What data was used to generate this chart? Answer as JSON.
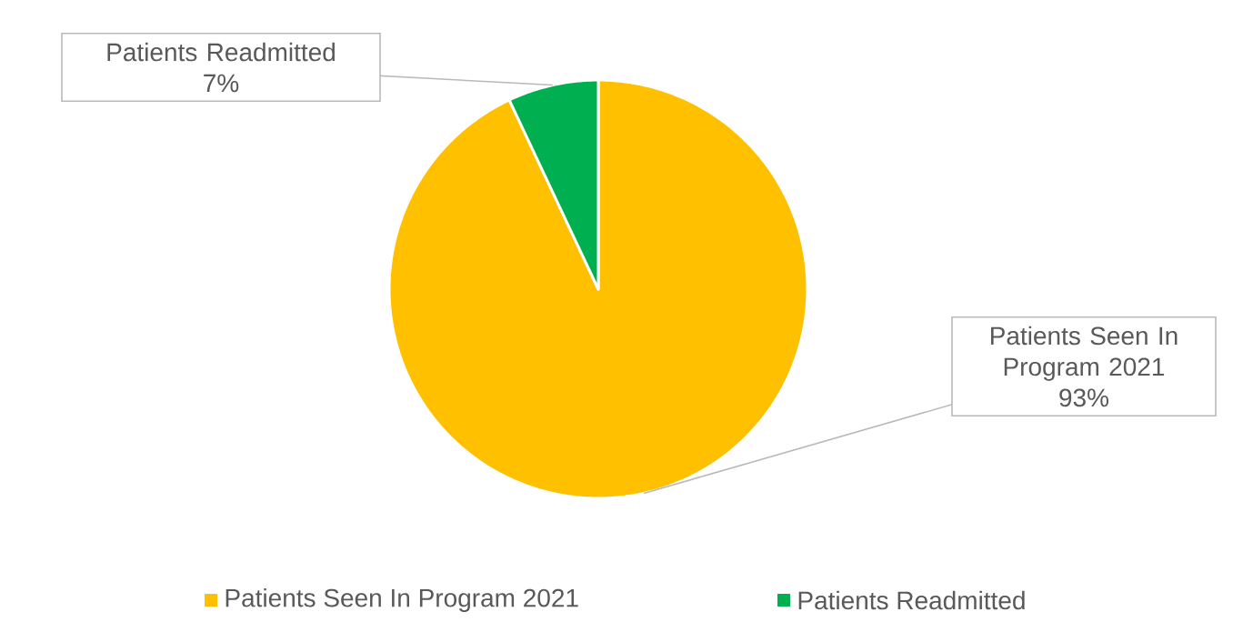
{
  "chart_data": {
    "type": "pie",
    "categories": [
      "Patients Seen In Program 2021",
      "Patients Readmitted"
    ],
    "values": [
      93,
      7
    ],
    "colors": [
      "#ffc000",
      "#00b050"
    ],
    "value_labels": [
      "93%",
      "7%"
    ],
    "legend": "bottom"
  }
}
